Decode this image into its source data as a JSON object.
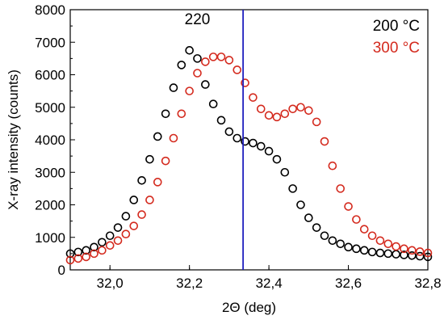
{
  "chart_data": {
    "type": "scatter",
    "xlabel": "2Θ (deg)",
    "ylabel": "X-ray intensity (counts)",
    "xlim": [
      31.9,
      32.8
    ],
    "ylim": [
      0,
      8000
    ],
    "x_ticks": [
      32.0,
      32.2,
      32.4,
      32.6,
      32.8
    ],
    "x_tick_labels": [
      "32,0",
      "32,2",
      "32,4",
      "32,6",
      "32,8"
    ],
    "y_ticks": [
      0,
      1000,
      2000,
      3000,
      4000,
      5000,
      6000,
      7000,
      8000
    ],
    "y_tick_labels": [
      "0",
      "1000",
      "2000",
      "3000",
      "4000",
      "5000",
      "6000",
      "7000",
      "8000"
    ],
    "annotations": [
      {
        "text": "220",
        "x": 32.22,
        "y": 7550,
        "color": "#000000"
      }
    ],
    "vertical_line": {
      "x": 32.335,
      "color": "#1f1fbf"
    },
    "legend": {
      "position": "top-right"
    },
    "series": [
      {
        "name": "200 °C",
        "color": "#000000",
        "marker": "open-circle",
        "points": [
          [
            31.9,
            500
          ],
          [
            31.92,
            550
          ],
          [
            31.94,
            600
          ],
          [
            31.96,
            700
          ],
          [
            31.98,
            850
          ],
          [
            32.0,
            1050
          ],
          [
            32.02,
            1300
          ],
          [
            32.04,
            1650
          ],
          [
            32.06,
            2150
          ],
          [
            32.08,
            2750
          ],
          [
            32.1,
            3400
          ],
          [
            32.12,
            4100
          ],
          [
            32.14,
            4800
          ],
          [
            32.16,
            5600
          ],
          [
            32.18,
            6300
          ],
          [
            32.2,
            6750
          ],
          [
            32.22,
            6500
          ],
          [
            32.24,
            5700
          ],
          [
            32.26,
            5100
          ],
          [
            32.28,
            4600
          ],
          [
            32.3,
            4250
          ],
          [
            32.32,
            4050
          ],
          [
            32.34,
            3950
          ],
          [
            32.36,
            3900
          ],
          [
            32.38,
            3800
          ],
          [
            32.4,
            3650
          ],
          [
            32.42,
            3400
          ],
          [
            32.44,
            3000
          ],
          [
            32.46,
            2500
          ],
          [
            32.48,
            2000
          ],
          [
            32.5,
            1600
          ],
          [
            32.52,
            1300
          ],
          [
            32.54,
            1050
          ],
          [
            32.56,
            900
          ],
          [
            32.58,
            800
          ],
          [
            32.6,
            700
          ],
          [
            32.62,
            650
          ],
          [
            32.64,
            600
          ],
          [
            32.66,
            550
          ],
          [
            32.68,
            520
          ],
          [
            32.7,
            500
          ],
          [
            32.72,
            480
          ],
          [
            32.74,
            460
          ],
          [
            32.76,
            440
          ],
          [
            32.78,
            420
          ],
          [
            32.8,
            400
          ]
        ]
      },
      {
        "name": "300 °C",
        "color": "#d42a1e",
        "marker": "open-circle",
        "points": [
          [
            31.9,
            300
          ],
          [
            31.92,
            350
          ],
          [
            31.94,
            400
          ],
          [
            31.96,
            500
          ],
          [
            31.98,
            600
          ],
          [
            32.0,
            750
          ],
          [
            32.02,
            900
          ],
          [
            32.04,
            1100
          ],
          [
            32.06,
            1350
          ],
          [
            32.08,
            1700
          ],
          [
            32.1,
            2150
          ],
          [
            32.12,
            2700
          ],
          [
            32.14,
            3350
          ],
          [
            32.16,
            4050
          ],
          [
            32.18,
            4800
          ],
          [
            32.2,
            5500
          ],
          [
            32.22,
            6050
          ],
          [
            32.24,
            6400
          ],
          [
            32.26,
            6550
          ],
          [
            32.28,
            6550
          ],
          [
            32.3,
            6450
          ],
          [
            32.32,
            6150
          ],
          [
            32.34,
            5750
          ],
          [
            32.36,
            5300
          ],
          [
            32.38,
            4950
          ],
          [
            32.4,
            4750
          ],
          [
            32.42,
            4700
          ],
          [
            32.44,
            4800
          ],
          [
            32.46,
            4950
          ],
          [
            32.48,
            5000
          ],
          [
            32.5,
            4900
          ],
          [
            32.52,
            4550
          ],
          [
            32.54,
            3950
          ],
          [
            32.56,
            3200
          ],
          [
            32.58,
            2500
          ],
          [
            32.6,
            1950
          ],
          [
            32.62,
            1550
          ],
          [
            32.64,
            1250
          ],
          [
            32.66,
            1050
          ],
          [
            32.68,
            900
          ],
          [
            32.7,
            800
          ],
          [
            32.72,
            720
          ],
          [
            32.74,
            650
          ],
          [
            32.76,
            600
          ],
          [
            32.78,
            560
          ],
          [
            32.8,
            520
          ]
        ]
      }
    ]
  }
}
